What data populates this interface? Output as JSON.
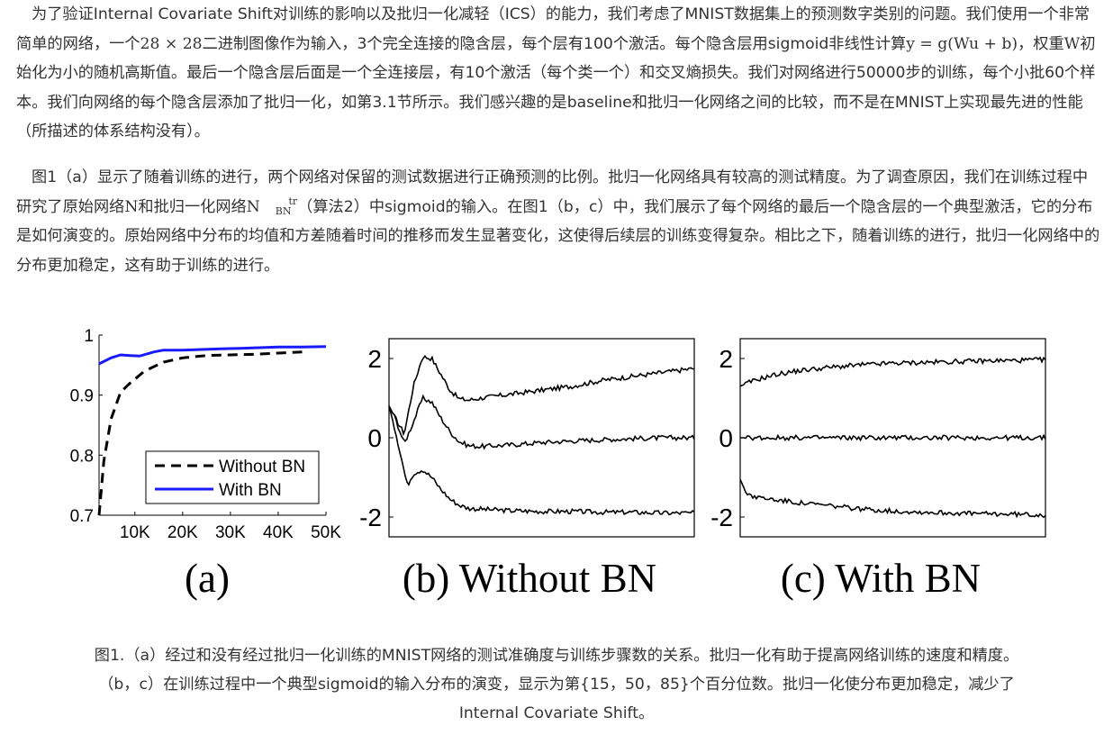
{
  "paragraph1": {
    "s1": "为了验证Internal Covariate Shift对训练的影响以及批归一化减轻（ICS）的能力，我们考虑了MNIST数据集上的预测数字类别的问题。我们使用一个非常简单的网络，一个",
    "m1": "28 × 28",
    "s2": "二进制图像作为输入，3个完全连接的隐含层，每个层有100个激活。每个隐含层用sigmoid非线性计算",
    "m2": "y = g(Wu + b)",
    "s3": "，权重",
    "m3": "W",
    "s4": "初始化为小的随机高斯值。最后一个隐含层后面是一个全连接层，有10个激活（每个类一个）和交叉熵损失。我们对网络进行50000步的训练，每个小批60个样本。我们向网络的每个隐含层添加了批归一化，如第3.1节所示。我们感兴趣的是baseline和批归一化网络之间的比较，而不是在MNIST上实现最先进的性能（所描述的体系结构没有）。"
  },
  "paragraph2": {
    "s1": "图1（a）显示了随着训练的进行，两个网络对保留的测试数据进行正确预测的比例。批归一化网络具有较高的测试精度。为了调查原因，我们在训练过程中研究了原始网络",
    "m1": "N",
    "s2": "和批归一化网络",
    "m2": "N",
    "m2_sub": "BN",
    "m2_sup": "tr",
    "s3": "（算法2）中sigmoid的输入。在图1（b，c）中，我们展示了每个网络的最后一个隐含层的一个典型激活，它的分布是如何演变的。原始网络中分布的均值和方差随着时间的推移而发生显著变化，这使得后续层的训练变得复杂。相比之下，随着训练的进行，批归一化网络中的分布更加稳定，这有助于训练的进行。"
  },
  "figure": {
    "panel_a_label": "(a)",
    "panel_b_label": "(b) Without BN",
    "panel_c_label": "(c) With BN"
  },
  "caption": {
    "line1": "图1.（a）经过和没有经过批归一化训练的MNIST网络的测试准确度与训练步骤数的关系。批归一化有助于提高网络训练的速度和精度。",
    "line2": "（b，c）在训练过程中一个典型sigmoid的输入分布的演变，显示为第{15，50，85}个百分位数。批归一化使分布更加稳定，减少了",
    "line3": "Internal Covariate  Shift。"
  },
  "chart_data": [
    {
      "type": "line",
      "panel": "(a)",
      "x_tick_labels": [
        "10K",
        "20K",
        "30K",
        "40K",
        "50K"
      ],
      "y_tick_labels": [
        "0.7",
        "0.8",
        "0.9",
        "1"
      ],
      "xlim": [
        2500,
        50000
      ],
      "ylim": [
        0.7,
        1.0
      ],
      "legend_position": "center-right",
      "series": [
        {
          "name": "Without BN",
          "style": "dashed",
          "color": "#000000",
          "x": [
            2500,
            3500,
            5000,
            7000,
            9000,
            12000,
            16000,
            20000,
            25000,
            30000,
            35000,
            40000,
            45000
          ],
          "y": [
            0.7,
            0.79,
            0.86,
            0.905,
            0.92,
            0.94,
            0.955,
            0.962,
            0.966,
            0.967,
            0.968,
            0.97,
            0.972
          ]
        },
        {
          "name": "With BN",
          "style": "solid",
          "color": "#1a1aff",
          "x": [
            2500,
            5000,
            7000,
            9000,
            11000,
            14000,
            16000,
            20000,
            24000,
            28000,
            32000,
            36000,
            40000,
            45000,
            50000
          ],
          "y": [
            0.952,
            0.962,
            0.967,
            0.966,
            0.965,
            0.972,
            0.975,
            0.975,
            0.976,
            0.977,
            0.978,
            0.979,
            0.98,
            0.98,
            0.981
          ]
        }
      ]
    },
    {
      "type": "line",
      "panel": "(b) Without BN",
      "y_tick_labels": [
        "2",
        "0",
        "-2"
      ],
      "xlim": [
        0,
        1
      ],
      "ylim": [
        -2.5,
        2.5
      ],
      "series": [
        {
          "percentile": "85",
          "x": [
            0,
            0.02,
            0.05,
            0.08,
            0.11,
            0.14,
            0.17,
            0.2,
            0.23,
            0.26,
            0.3,
            0.35,
            0.4,
            0.5,
            0.6,
            0.7,
            0.8,
            0.9,
            1.0
          ],
          "y": [
            0.8,
            0.5,
            0.1,
            1.3,
            2.05,
            2.0,
            1.6,
            1.2,
            0.98,
            0.95,
            1.0,
            1.05,
            1.1,
            1.2,
            1.3,
            1.45,
            1.55,
            1.65,
            1.75
          ]
        },
        {
          "percentile": "50",
          "x": [
            0,
            0.02,
            0.05,
            0.08,
            0.11,
            0.14,
            0.17,
            0.2,
            0.23,
            0.26,
            0.3,
            0.35,
            0.4,
            0.5,
            0.6,
            0.7,
            0.8,
            0.9,
            1.0
          ],
          "y": [
            0.8,
            0.5,
            -0.15,
            0.4,
            1.0,
            0.9,
            0.5,
            0.15,
            -0.1,
            -0.2,
            -0.22,
            -0.2,
            -0.18,
            -0.12,
            -0.08,
            -0.05,
            -0.02,
            0.0,
            0.0
          ]
        },
        {
          "percentile": "15",
          "x": [
            0,
            0.02,
            0.04,
            0.06,
            0.08,
            0.11,
            0.14,
            0.17,
            0.2,
            0.23,
            0.26,
            0.3,
            0.35,
            0.4,
            0.5,
            0.6,
            0.7,
            0.8,
            0.9,
            1.0
          ],
          "y": [
            0.8,
            0.2,
            -0.5,
            -1.2,
            -0.9,
            -0.8,
            -1.0,
            -1.3,
            -1.55,
            -1.7,
            -1.78,
            -1.8,
            -1.82,
            -1.84,
            -1.86,
            -1.86,
            -1.88,
            -1.88,
            -1.9,
            -1.9
          ]
        }
      ]
    },
    {
      "type": "line",
      "panel": "(c) With BN",
      "y_tick_labels": [
        "2",
        "0",
        "-2"
      ],
      "xlim": [
        0,
        1
      ],
      "ylim": [
        -2.5,
        2.5
      ],
      "series": [
        {
          "percentile": "85",
          "x": [
            0,
            0.03,
            0.07,
            0.12,
            0.2,
            0.3,
            0.4,
            0.5,
            0.6,
            0.7,
            0.8,
            0.9,
            1.0
          ],
          "y": [
            1.3,
            1.4,
            1.5,
            1.6,
            1.7,
            1.78,
            1.84,
            1.88,
            1.9,
            1.92,
            1.94,
            1.95,
            1.97
          ]
        },
        {
          "percentile": "50",
          "x": [
            0,
            0.1,
            0.2,
            0.3,
            0.4,
            0.5,
            0.6,
            0.7,
            0.8,
            0.9,
            1.0
          ],
          "y": [
            0.0,
            0.0,
            0.0,
            0.0,
            0.0,
            0.0,
            0.0,
            0.0,
            0.0,
            0.0,
            0.0
          ]
        },
        {
          "percentile": "15",
          "x": [
            0,
            0.02,
            0.05,
            0.1,
            0.2,
            0.3,
            0.4,
            0.5,
            0.6,
            0.7,
            0.8,
            0.9,
            1.0
          ],
          "y": [
            -1.05,
            -1.4,
            -1.5,
            -1.55,
            -1.65,
            -1.72,
            -1.8,
            -1.85,
            -1.88,
            -1.9,
            -1.92,
            -1.93,
            -1.95
          ]
        }
      ]
    }
  ]
}
